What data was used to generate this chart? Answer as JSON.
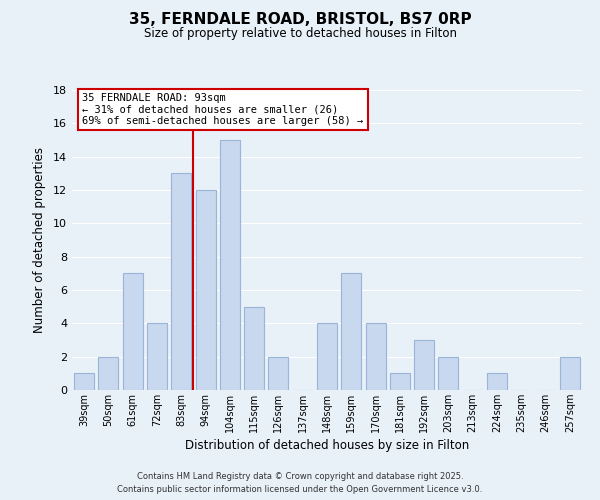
{
  "title": "35, FERNDALE ROAD, BRISTOL, BS7 0RP",
  "subtitle": "Size of property relative to detached houses in Filton",
  "xlabel": "Distribution of detached houses by size in Filton",
  "ylabel": "Number of detached properties",
  "bar_color": "#c8d8ee",
  "bar_edge_color": "#9ab5d8",
  "categories": [
    "39sqm",
    "50sqm",
    "61sqm",
    "72sqm",
    "83sqm",
    "94sqm",
    "104sqm",
    "115sqm",
    "126sqm",
    "137sqm",
    "148sqm",
    "159sqm",
    "170sqm",
    "181sqm",
    "192sqm",
    "203sqm",
    "213sqm",
    "224sqm",
    "235sqm",
    "246sqm",
    "257sqm"
  ],
  "values": [
    1,
    2,
    7,
    4,
    13,
    12,
    15,
    5,
    2,
    0,
    4,
    7,
    4,
    1,
    3,
    2,
    0,
    1,
    0,
    0,
    2
  ],
  "ylim": [
    0,
    18
  ],
  "yticks": [
    0,
    2,
    4,
    6,
    8,
    10,
    12,
    14,
    16,
    18
  ],
  "vline_index": 5,
  "vline_color": "#cc0000",
  "annotation_title": "35 FERNDALE ROAD: 93sqm",
  "annotation_line1": "← 31% of detached houses are smaller (26)",
  "annotation_line2": "69% of semi-detached houses are larger (58) →",
  "annotation_box_color": "#ffffff",
  "annotation_box_edge": "#cc0000",
  "bg_color": "#e8f0f8",
  "grid_color": "#ffffff",
  "footer1": "Contains HM Land Registry data © Crown copyright and database right 2025.",
  "footer2": "Contains public sector information licensed under the Open Government Licence v3.0."
}
